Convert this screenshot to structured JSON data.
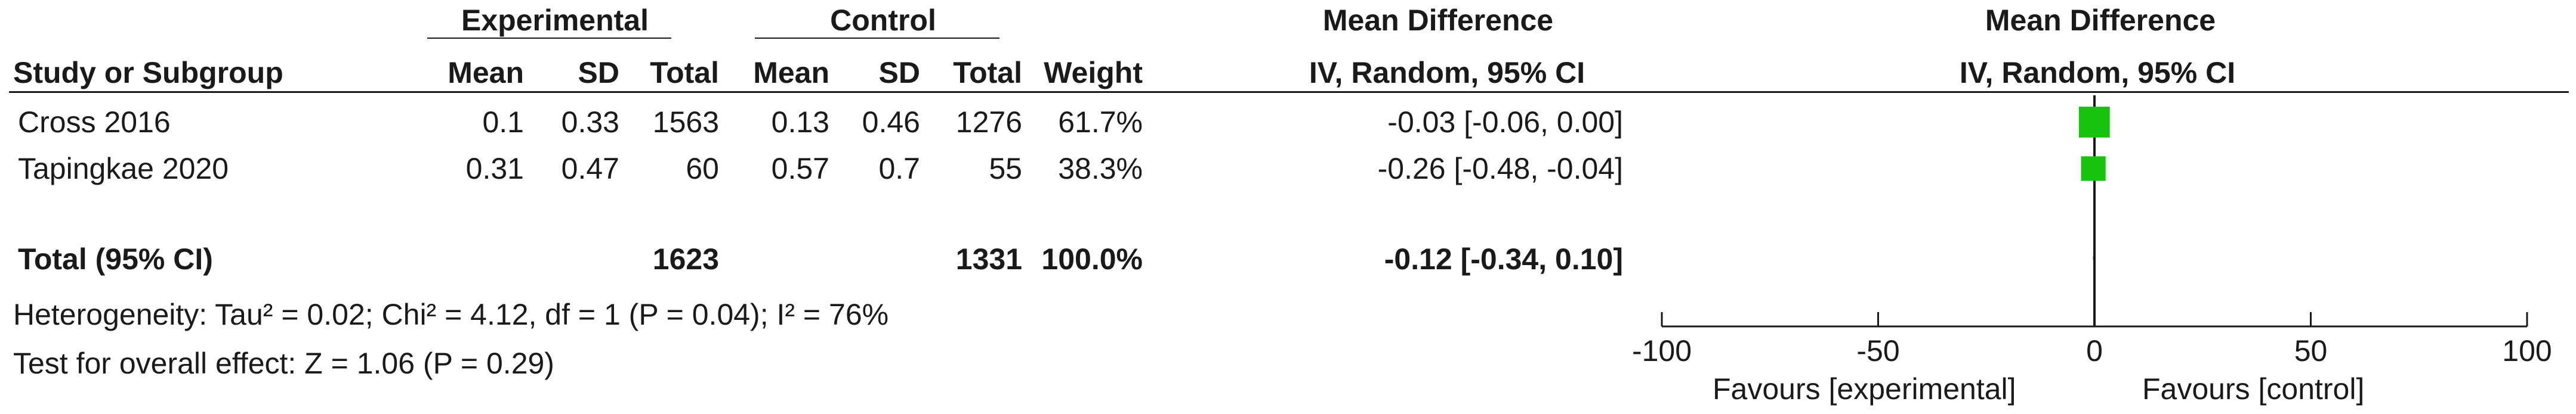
{
  "header": {
    "group_experimental": "Experimental",
    "group_control": "Control",
    "md_title_left": "Mean Difference",
    "md_title_right": "Mean Difference",
    "col_study": "Study or Subgroup",
    "col_mean_e": "Mean",
    "col_sd_e": "SD",
    "col_total_e": "Total",
    "col_mean_c": "Mean",
    "col_sd_c": "SD",
    "col_total_c": "Total",
    "col_weight": "Weight",
    "col_ci_left": "IV, Random, 95% CI",
    "col_ci_right": "IV, Random, 95% CI"
  },
  "studies": [
    {
      "name": "Cross 2016",
      "mean_e": "0.1",
      "sd_e": "0.33",
      "total_e": "1563",
      "mean_c": "0.13",
      "sd_c": "0.46",
      "total_c": "1276",
      "weight": "61.7%",
      "ci": "-0.03 [-0.06, 0.00]"
    },
    {
      "name": "Tapingkae 2020",
      "mean_e": "0.31",
      "sd_e": "0.47",
      "total_e": "60",
      "mean_c": "0.57",
      "sd_c": "0.7",
      "total_c": "55",
      "weight": "38.3%",
      "ci": "-0.26 [-0.48, -0.04]"
    }
  ],
  "total": {
    "label": "Total (95% CI)",
    "total_e": "1623",
    "total_c": "1331",
    "weight": "100.0%",
    "ci": "-0.12 [-0.34, 0.10]"
  },
  "footer": {
    "heterogeneity": "Heterogeneity: Tau² = 0.02; Chi² = 4.12, df = 1 (P = 0.04); I² = 76%",
    "overall_effect": "Test for overall effect: Z = 1.06 (P = 0.29)"
  },
  "axis": {
    "favours_left": "Favours [experimental]",
    "favours_right": "Favours [control]"
  },
  "colors": {
    "marker": "#16c40e",
    "line": "#1a1a1a"
  },
  "chart_data": {
    "type": "forest",
    "xlim": [
      -100,
      100
    ],
    "ticks": [
      -100,
      -50,
      0,
      50,
      100
    ],
    "tick_labels": [
      "-100",
      "-50",
      "0",
      "50",
      "100"
    ],
    "points": [
      {
        "study": "Cross 2016",
        "estimate": -0.03,
        "lower": -0.06,
        "upper": 0.0,
        "weight": 61.7
      },
      {
        "study": "Tapingkae 2020",
        "estimate": -0.26,
        "lower": -0.48,
        "upper": -0.04,
        "weight": 38.3
      }
    ],
    "pooled": {
      "estimate": -0.12,
      "lower": -0.34,
      "upper": 0.1
    }
  }
}
